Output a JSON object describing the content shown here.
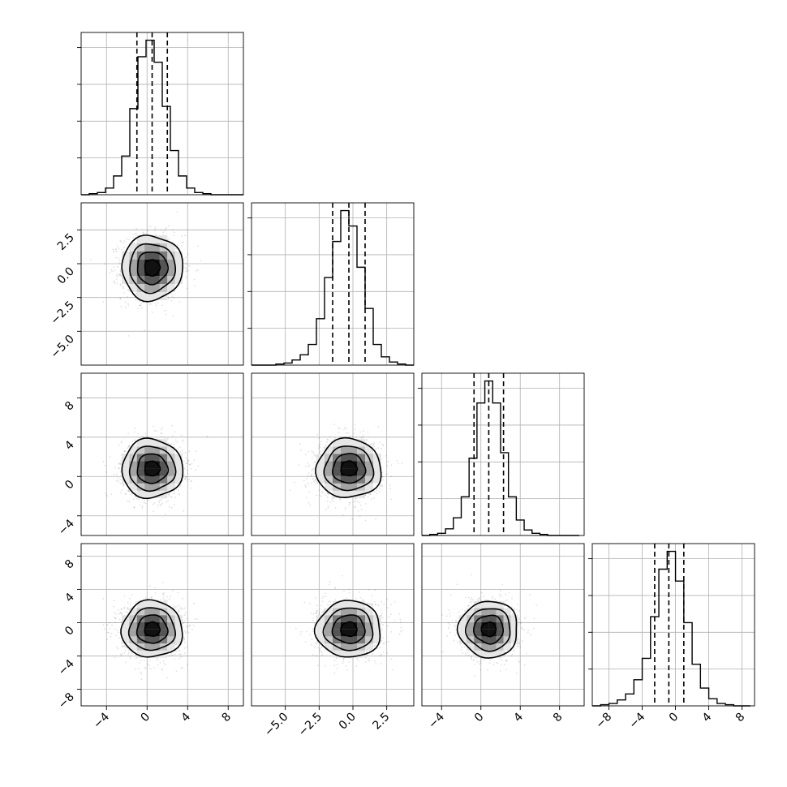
{
  "chart_data": {
    "type": "corner",
    "grid": true,
    "num_params": 4,
    "params": [
      {
        "index": 0,
        "xlim": [
          -6.5,
          9.5
        ],
        "xticks": [
          -4,
          0,
          4,
          8
        ],
        "tick_labels": [
          "−4",
          "0",
          "4",
          "8"
        ],
        "quantiles": [
          -1.0,
          0.5,
          2.0
        ],
        "mean": 0.5,
        "sd": 1.5
      },
      {
        "index": 1,
        "xlim": [
          -7.5,
          4.5
        ],
        "xticks": [
          -5.0,
          -2.5,
          0.0,
          2.5
        ],
        "tick_labels": [
          "−5.0",
          "−2.5",
          "0.0",
          "2.5"
        ],
        "quantiles": [
          -1.5,
          -0.3,
          0.9
        ],
        "mean": -0.3,
        "sd": 1.2
      },
      {
        "index": 2,
        "xlim": [
          -6.0,
          10.5
        ],
        "xticks": [
          -4,
          0,
          4,
          8
        ],
        "tick_labels": [
          "−4",
          "0",
          "4",
          "8"
        ],
        "quantiles": [
          -0.7,
          0.8,
          2.3
        ],
        "mean": 0.8,
        "sd": 1.5
      },
      {
        "index": 3,
        "xlim": [
          -10.0,
          9.5
        ],
        "xticks": [
          -8,
          -4,
          0,
          4,
          8
        ],
        "tick_labels": [
          "−8",
          "−4",
          "0",
          "4",
          "8"
        ],
        "quantiles": [
          -2.5,
          -0.8,
          1.0
        ],
        "mean": -0.8,
        "sd": 1.7
      }
    ],
    "diag_histograms": [
      {
        "bin_edges": [
          -6.5,
          -5.7,
          -4.9,
          -4.1,
          -3.3,
          -2.5,
          -1.7,
          -0.9,
          -0.1,
          0.7,
          1.5,
          2.3,
          3.1,
          3.9,
          4.7,
          5.5,
          6.3,
          7.1,
          7.9,
          8.7,
          9.5
        ],
        "counts": [
          0,
          1,
          2,
          6,
          17,
          35,
          78,
          125,
          140,
          120,
          80,
          40,
          17,
          6,
          2,
          1,
          0,
          0,
          0,
          0
        ]
      },
      {
        "bin_edges": [
          -7.5,
          -6.9,
          -6.3,
          -5.7,
          -5.1,
          -4.5,
          -3.9,
          -3.3,
          -2.7,
          -2.1,
          -1.5,
          -0.9,
          -0.3,
          0.3,
          0.9,
          1.5,
          2.1,
          2.7,
          3.3,
          3.9,
          4.5
        ],
        "counts": [
          0,
          0,
          0,
          1,
          2,
          5,
          10,
          20,
          45,
          85,
          120,
          150,
          135,
          95,
          55,
          20,
          8,
          3,
          1,
          0
        ]
      },
      {
        "bin_edges": [
          -6.0,
          -5.2,
          -4.4,
          -3.6,
          -2.8,
          -2.0,
          -1.2,
          -0.4,
          0.4,
          1.2,
          2.0,
          2.8,
          3.6,
          4.4,
          5.2,
          6.0,
          6.8,
          7.6,
          8.4,
          9.2,
          10.0
        ],
        "counts": [
          0,
          1,
          2,
          6,
          16,
          35,
          70,
          120,
          140,
          120,
          75,
          35,
          14,
          5,
          2,
          1,
          0,
          0,
          0,
          0
        ]
      },
      {
        "bin_edges": [
          -10.0,
          -9.0,
          -8.0,
          -7.0,
          -6.0,
          -5.0,
          -4.0,
          -3.0,
          -2.0,
          -1.0,
          0.0,
          1.0,
          2.0,
          3.0,
          4.0,
          5.0,
          6.0,
          7.0,
          8.0,
          9.0
        ],
        "counts": [
          0,
          1,
          2,
          5,
          10,
          22,
          40,
          75,
          115,
          130,
          105,
          70,
          35,
          15,
          6,
          2,
          1,
          0,
          0
        ]
      }
    ],
    "pairs": [
      {
        "x": 0,
        "y": 1
      },
      {
        "x": 0,
        "y": 2
      },
      {
        "x": 1,
        "y": 2
      },
      {
        "x": 0,
        "y": 3
      },
      {
        "x": 1,
        "y": 3
      },
      {
        "x": 2,
        "y": 3
      }
    ],
    "contour_levels_sigma": [
      0.5,
      1.0,
      1.5,
      2.0
    ]
  }
}
